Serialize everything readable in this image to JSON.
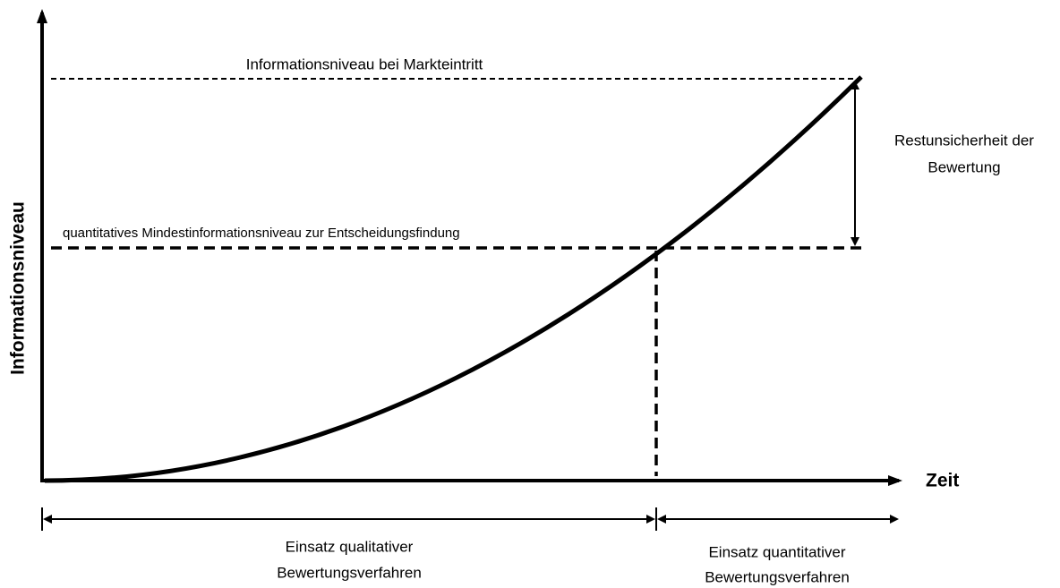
{
  "y_axis_label": "Informationsniveau",
  "x_axis_label": "Zeit",
  "top_level_label": "Informationsniveau bei Markteintritt",
  "min_level_label": "quantitatives Mindestinformationsniveau zur Entscheidungsfindung",
  "uncertainty_label": [
    "Restunsicherheit der",
    "Bewertung"
  ],
  "phases": [
    {
      "lines": [
        "Einsatz qualitativer",
        "Bewertungsverfahren"
      ]
    },
    {
      "lines": [
        "Einsatz quantitativer",
        "Bewertungsverfahren"
      ]
    }
  ]
}
